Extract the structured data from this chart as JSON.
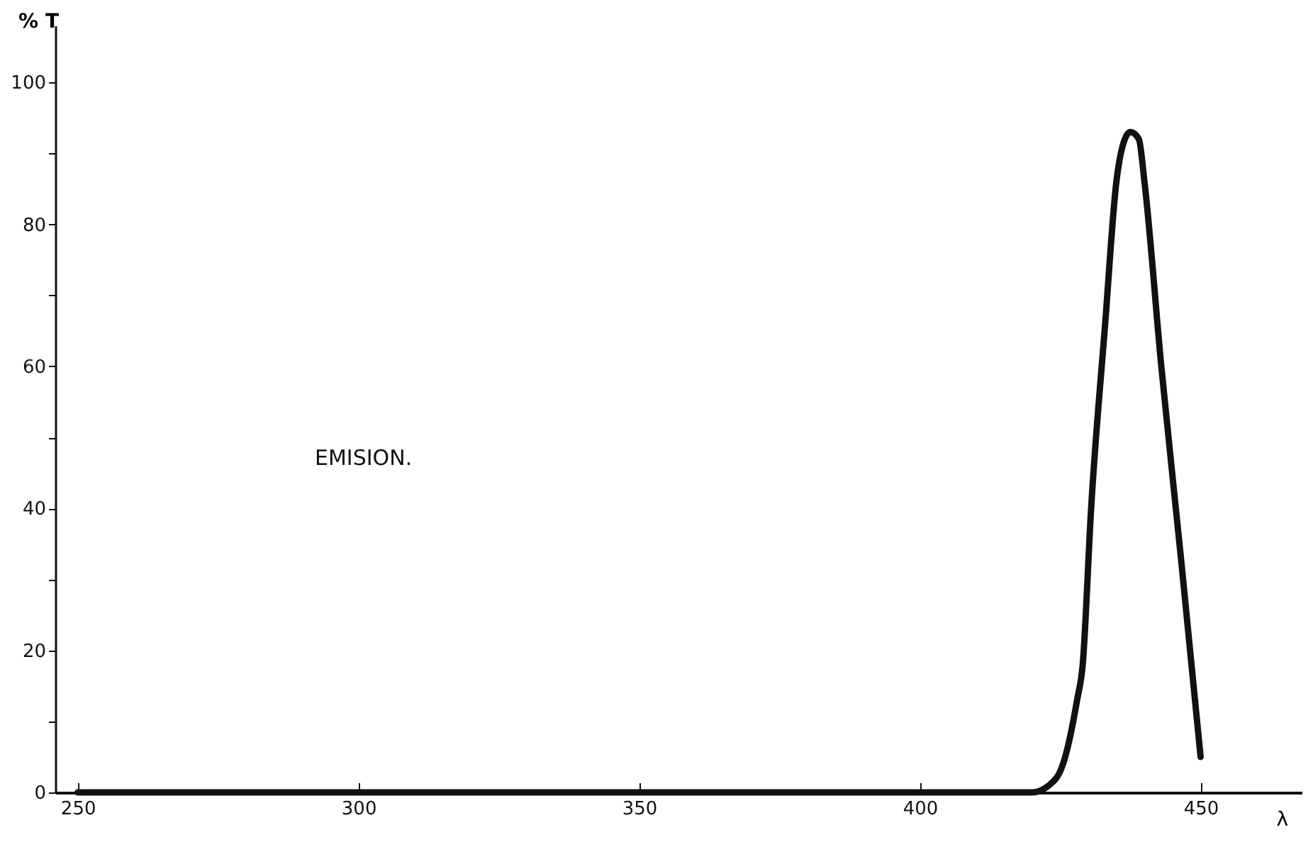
{
  "chart_data": {
    "type": "line",
    "xlabel": "λ",
    "ylabel": "% T",
    "annotations": [
      "EMISION."
    ],
    "xlim": [
      246,
      468
    ],
    "ylim": [
      0,
      108
    ],
    "xticks": [
      250,
      300,
      350,
      400,
      450
    ],
    "yticks": [
      0,
      {
        "value": 10,
        "label": null
      },
      20,
      {
        "value": 30,
        "label": null
      },
      40,
      {
        "value": 50,
        "label": null
      },
      60,
      {
        "value": 70,
        "label": null
      },
      80,
      {
        "value": 90,
        "label": null
      },
      100
    ],
    "grid": false,
    "series": [
      {
        "color": "#111111",
        "x": [
          250,
          420,
          423,
          425.5,
          428,
          429,
          430.5,
          433,
          435,
          436.5,
          437.5,
          439,
          440,
          443,
          446.5,
          450
        ],
        "values": [
          0,
          0,
          1,
          4,
          13,
          18,
          40,
          66,
          86,
          92,
          93,
          92,
          86,
          60,
          33,
          5
        ]
      }
    ]
  }
}
